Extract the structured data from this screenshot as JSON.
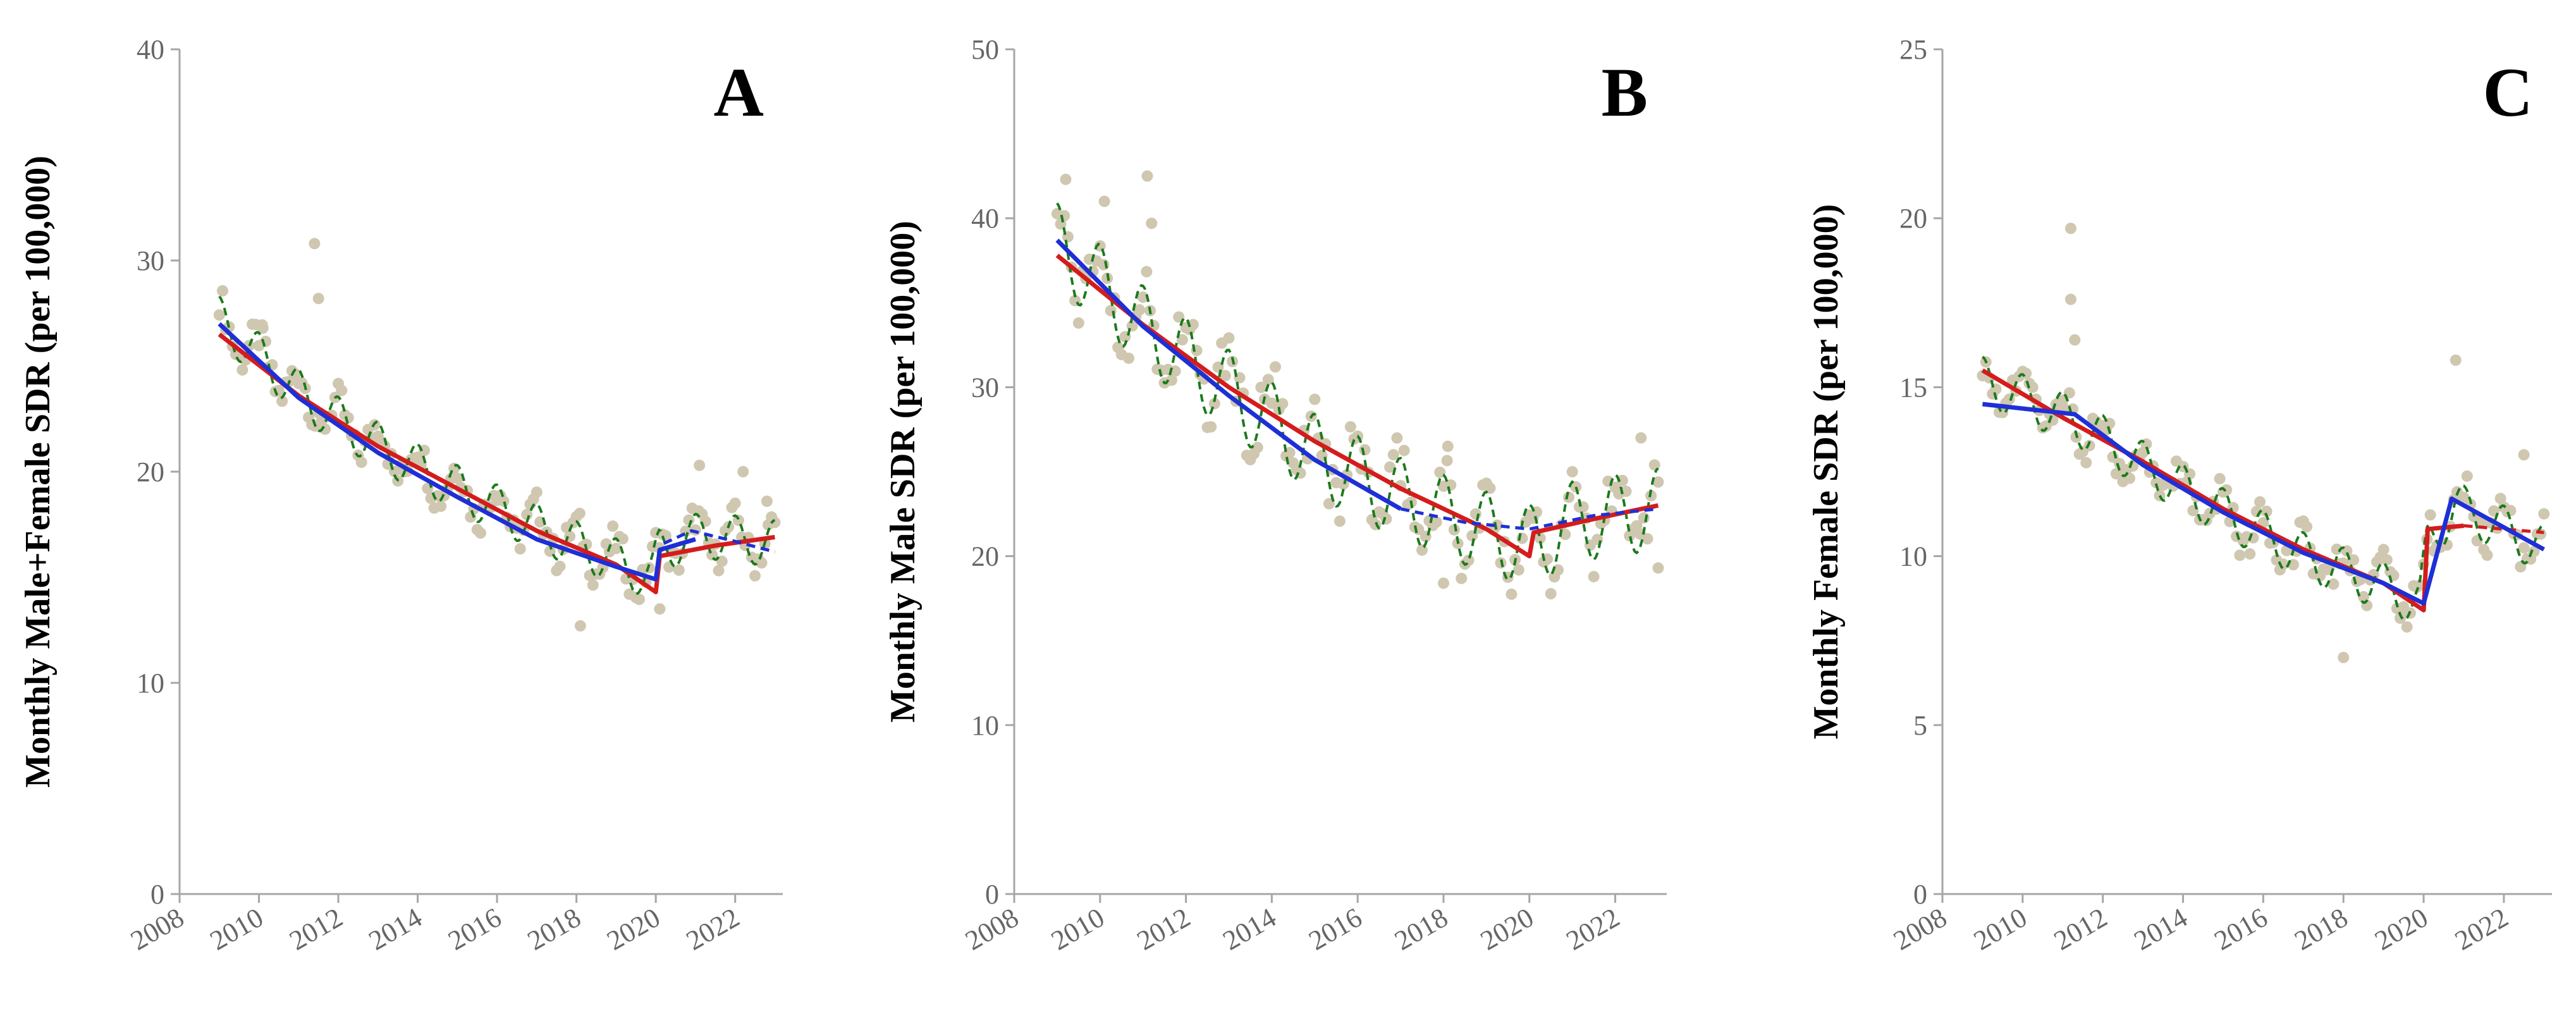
{
  "colors": {
    "points": "#cfc7b0",
    "seasonal": "#1b7a1b",
    "red_fit": "#d41c1c",
    "blue_fit": "#1f2fd6",
    "axis": "#a6a6a6"
  },
  "chart_data": [
    {
      "type": "scatter",
      "panel_label": "A",
      "ylabel": "Monthly Male+Female SDR (per 100,000)",
      "ylim": [
        0,
        40
      ],
      "yticks": [
        0,
        10,
        20,
        30,
        40
      ],
      "xlim": [
        2008,
        2023.2
      ],
      "xticks": [
        2008,
        2010,
        2012,
        2014,
        2016,
        2018,
        2020,
        2022
      ],
      "seasonal_amplitude": 1.1,
      "points_trend": [
        [
          2009,
          27.2
        ],
        [
          2011.2,
          23.4
        ],
        [
          2013.2,
          21.0
        ],
        [
          2015.2,
          19.0
        ],
        [
          2017.2,
          17.2
        ],
        [
          2019.9,
          15.0
        ],
        [
          2020.1,
          16.4
        ],
        [
          2021.2,
          17.0
        ],
        [
          2023,
          16.6
        ]
      ],
      "outliers": [
        [
          2011.4,
          30.8
        ],
        [
          2011.5,
          28.2
        ],
        [
          2010.1,
          26.8
        ],
        [
          2018.1,
          12.7
        ],
        [
          2021.1,
          20.3
        ],
        [
          2022.2,
          20.0
        ],
        [
          2020.1,
          13.5
        ],
        [
          2022.8,
          18.6
        ]
      ],
      "red_fit": [
        [
          2009,
          26.5
        ],
        [
          2011,
          23.6
        ],
        [
          2013,
          21.2
        ],
        [
          2015,
          19.2
        ],
        [
          2017,
          17.2
        ],
        [
          2019,
          15.6
        ],
        [
          2020,
          14.3
        ],
        [
          2020.1,
          16.0
        ],
        [
          2021.5,
          16.5
        ],
        [
          2023,
          16.9
        ]
      ],
      "blue_fit": [
        [
          2009,
          27.0
        ],
        [
          2011,
          23.5
        ],
        [
          2013,
          20.9
        ],
        [
          2015,
          18.8
        ],
        [
          2017,
          16.8
        ],
        [
          2019,
          15.5
        ],
        [
          2020,
          14.9
        ],
        [
          2020.1,
          16.3
        ],
        [
          2021,
          16.8
        ]
      ],
      "blue_dashed": [
        [
          2020.2,
          16.6
        ],
        [
          2020.9,
          17.2
        ],
        [
          2022,
          16.7
        ],
        [
          2023,
          16.2
        ]
      ]
    },
    {
      "type": "scatter",
      "panel_label": "B",
      "ylabel": "Monthly Male SDR (per 100,000)",
      "ylim": [
        0,
        50
      ],
      "yticks": [
        0,
        10,
        20,
        30,
        40,
        50
      ],
      "xlim": [
        2008,
        2023.2
      ],
      "xticks": [
        2008,
        2010,
        2012,
        2014,
        2016,
        2018,
        2020,
        2022
      ],
      "seasonal_amplitude": 2.4,
      "points_trend": [
        [
          2009,
          38.5
        ],
        [
          2011,
          33.6
        ],
        [
          2013,
          29.8
        ],
        [
          2015,
          26.0
        ],
        [
          2017,
          23.4
        ],
        [
          2019,
          21.4
        ],
        [
          2020,
          20.6
        ],
        [
          2021,
          22.0
        ],
        [
          2023,
          22.8
        ]
      ],
      "outliers": [
        [
          2011.1,
          42.5
        ],
        [
          2009.2,
          42.3
        ],
        [
          2010.1,
          41.0
        ],
        [
          2011.2,
          39.7
        ],
        [
          2018.1,
          26.5
        ],
        [
          2018.0,
          18.4
        ],
        [
          2022.6,
          27.0
        ],
        [
          2023,
          19.3
        ]
      ],
      "red_fit": [
        [
          2009,
          37.8
        ],
        [
          2011,
          33.7
        ],
        [
          2013,
          30.0
        ],
        [
          2015,
          26.8
        ],
        [
          2017,
          24.0
        ],
        [
          2019,
          21.6
        ],
        [
          2020,
          20.0
        ],
        [
          2020.1,
          21.4
        ],
        [
          2021.5,
          22.2
        ],
        [
          2023,
          23.0
        ]
      ],
      "blue_fit": [
        [
          2009,
          38.7
        ],
        [
          2011,
          33.6
        ],
        [
          2013,
          29.5
        ],
        [
          2015,
          25.7
        ],
        [
          2017,
          22.8
        ]
      ],
      "blue_dashed": [
        [
          2017,
          22.8
        ],
        [
          2018.5,
          22.0
        ],
        [
          2020,
          21.6
        ],
        [
          2021.5,
          22.4
        ],
        [
          2023,
          22.8
        ]
      ]
    },
    {
      "type": "scatter",
      "panel_label": "C",
      "ylabel": "Monthly Female SDR (per 100,000)",
      "ylim": [
        0,
        25
      ],
      "yticks": [
        0,
        5,
        10,
        15,
        20,
        25
      ],
      "xlim": [
        2008,
        2023.2
      ],
      "xticks": [
        2008,
        2010,
        2012,
        2014,
        2016,
        2018,
        2020,
        2022
      ],
      "seasonal_amplitude": 0.7,
      "points_trend": [
        [
          2009,
          15.2
        ],
        [
          2011.3,
          14.0
        ],
        [
          2013,
          12.7
        ],
        [
          2015,
          11.3
        ],
        [
          2017,
          10.0
        ],
        [
          2019,
          9.1
        ],
        [
          2019.9,
          8.6
        ],
        [
          2020.1,
          10.4
        ],
        [
          2020.8,
          11.5
        ],
        [
          2023,
          10.2
        ]
      ],
      "outliers": [
        [
          2011.2,
          19.7
        ],
        [
          2011.2,
          17.6
        ],
        [
          2011.3,
          16.4
        ],
        [
          2018.0,
          7.0
        ],
        [
          2020.8,
          15.8
        ],
        [
          2022.5,
          13.0
        ],
        [
          2019.5,
          8.5
        ]
      ],
      "red_fit": [
        [
          2009,
          15.5
        ],
        [
          2011,
          14.1
        ],
        [
          2013,
          12.8
        ],
        [
          2015,
          11.4
        ],
        [
          2017,
          10.2
        ],
        [
          2019,
          9.2
        ],
        [
          2020,
          8.4
        ],
        [
          2020.1,
          10.8
        ],
        [
          2021,
          10.9
        ]
      ],
      "red_dashed": [
        [
          2021,
          10.9
        ],
        [
          2022,
          10.8
        ],
        [
          2023,
          10.7
        ]
      ],
      "blue_fit": [
        [
          2009,
          14.5
        ],
        [
          2011.3,
          14.2
        ],
        [
          2013,
          12.7
        ],
        [
          2015,
          11.3
        ],
        [
          2017,
          10.1
        ],
        [
          2019,
          9.2
        ],
        [
          2020,
          8.6
        ],
        [
          2020.7,
          11.7
        ],
        [
          2023,
          10.2
        ]
      ]
    }
  ]
}
